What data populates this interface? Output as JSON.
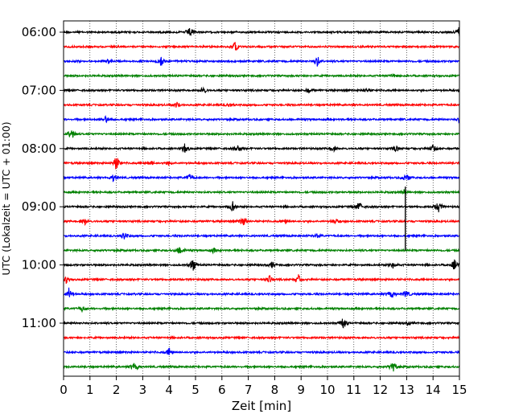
{
  "chart_data": {
    "type": "line",
    "title": "",
    "xlabel": "Zeit  [min]",
    "ylabel": "UTC (Lokalzeit = UTC + 01:00)",
    "xlim": [
      0,
      15
    ],
    "x_ticks": [
      "0",
      "1",
      "2",
      "3",
      "4",
      "5",
      "6",
      "7",
      "8",
      "9",
      "10",
      "11",
      "12",
      "13",
      "14",
      "15"
    ],
    "y_tick_labels": [
      "06:00",
      "07:00",
      "08:00",
      "09:00",
      "10:00",
      "11:00"
    ],
    "grid": "vertical dotted lines at each minute",
    "legend": "none",
    "trace_interval_minutes": 15,
    "start_time_utc": "06:00",
    "color_cycle": [
      "#000000",
      "#ff0000",
      "#0000ff",
      "#008000"
    ],
    "traces": [
      {
        "start": "06:00",
        "color": "#000000",
        "events": [
          [
            4.8,
            1.4
          ],
          [
            15.0,
            1.6
          ]
        ]
      },
      {
        "start": "06:15",
        "color": "#ff0000",
        "events": [
          [
            6.5,
            1.2
          ]
        ]
      },
      {
        "start": "06:30",
        "color": "#0000ff",
        "events": [
          [
            3.7,
            1.2
          ],
          [
            9.6,
            1.5
          ],
          [
            1.7,
            0.6
          ]
        ]
      },
      {
        "start": "06:45",
        "color": "#008000",
        "events": [
          [
            12.5,
            0.6
          ]
        ]
      },
      {
        "start": "07:00",
        "color": "#000000",
        "events": [
          [
            5.3,
            0.8
          ],
          [
            9.3,
            0.6
          ],
          [
            11.5,
            0.7
          ]
        ]
      },
      {
        "start": "07:15",
        "color": "#ff0000",
        "events": [
          [
            4.3,
            0.8
          ],
          [
            6.3,
            0.5
          ]
        ]
      },
      {
        "start": "07:30",
        "color": "#0000ff",
        "events": [
          [
            1.6,
            1.0
          ],
          [
            15.0,
            0.8
          ]
        ]
      },
      {
        "start": "07:45",
        "color": "#008000",
        "events": [
          [
            0.3,
            1.6
          ]
        ]
      },
      {
        "start": "08:00",
        "color": "#000000",
        "events": [
          [
            4.6,
            1.2
          ],
          [
            6.6,
            0.9
          ],
          [
            10.2,
            0.8
          ],
          [
            12.6,
            0.8
          ],
          [
            14.0,
            1.2
          ]
        ]
      },
      {
        "start": "08:15",
        "color": "#ff0000",
        "events": [
          [
            2.0,
            2.0
          ],
          [
            3.3,
            0.6
          ],
          [
            4.0,
            0.5
          ]
        ]
      },
      {
        "start": "08:30",
        "color": "#0000ff",
        "events": [
          [
            1.9,
            1.0
          ],
          [
            4.8,
            1.0
          ],
          [
            13.0,
            1.4
          ]
        ]
      },
      {
        "start": "08:45",
        "color": "#008000",
        "events": [
          [
            12.9,
            0.5
          ]
        ]
      },
      {
        "start": "09:00",
        "color": "#000000",
        "events": [
          [
            6.4,
            1.4
          ],
          [
            11.2,
            1.2
          ],
          [
            14.2,
            1.8
          ]
        ]
      },
      {
        "start": "09:15",
        "color": "#ff0000",
        "events": [
          [
            0.8,
            0.8
          ],
          [
            6.8,
            1.4
          ],
          [
            8.4,
            0.6
          ],
          [
            10.3,
            0.6
          ]
        ]
      },
      {
        "start": "09:30",
        "color": "#0000ff",
        "events": [
          [
            2.3,
            1.1
          ],
          [
            9.6,
            0.6
          ]
        ]
      },
      {
        "start": "09:45",
        "color": "#008000",
        "events": [
          [
            4.4,
            1.4
          ],
          [
            5.7,
            0.7
          ]
        ]
      },
      {
        "start": "10:00",
        "color": "#000000",
        "events": [
          [
            4.9,
            1.6
          ],
          [
            7.9,
            0.8
          ],
          [
            12.5,
            0.8
          ],
          [
            14.8,
            1.3
          ]
        ]
      },
      {
        "start": "10:15",
        "color": "#ff0000",
        "events": [
          [
            7.8,
            1.1
          ],
          [
            8.9,
            1.1
          ],
          [
            0.1,
            0.8
          ]
        ]
      },
      {
        "start": "10:30",
        "color": "#0000ff",
        "events": [
          [
            0.2,
            1.6
          ],
          [
            12.4,
            1.5
          ],
          [
            13.0,
            1.0
          ]
        ]
      },
      {
        "start": "10:45",
        "color": "#008000",
        "events": [
          [
            0.7,
            0.7
          ]
        ]
      },
      {
        "start": "11:00",
        "color": "#000000",
        "events": [
          [
            10.6,
            1.5
          ],
          [
            13.1,
            0.5
          ]
        ]
      },
      {
        "start": "11:15",
        "color": "#ff0000",
        "events": []
      },
      {
        "start": "11:30",
        "color": "#0000ff",
        "events": [
          [
            4.0,
            1.2
          ]
        ]
      },
      {
        "start": "11:45",
        "color": "#008000",
        "events": [
          [
            2.7,
            1.6
          ],
          [
            12.5,
            1.6
          ]
        ]
      }
    ],
    "long_spike_minute": 12.95
  }
}
